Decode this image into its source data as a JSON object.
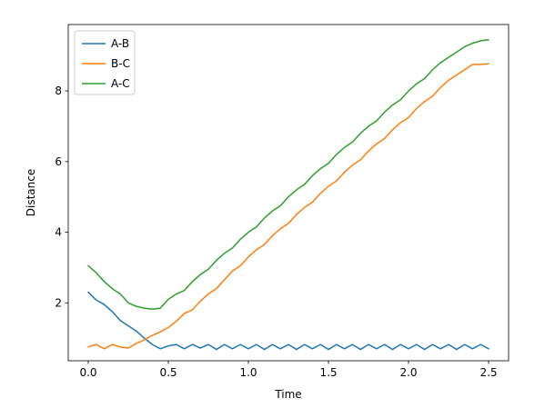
{
  "chart_data": {
    "type": "line",
    "title": "",
    "xlabel": "Time",
    "ylabel": "Distance",
    "xlim": [
      -0.125,
      2.625
    ],
    "ylim": [
      0.36,
      9.88
    ],
    "xticks": [
      0.0,
      0.5,
      1.0,
      1.5,
      2.0,
      2.5
    ],
    "xtick_labels": [
      "0.0",
      "0.5",
      "1.0",
      "1.5",
      "2.0",
      "2.5"
    ],
    "yticks": [
      2,
      4,
      6,
      8
    ],
    "ytick_labels": [
      "2",
      "4",
      "6",
      "8"
    ],
    "grid": false,
    "legend_position": "top-left",
    "series": [
      {
        "name": "A-B",
        "color": "#1f77b4",
        "x": [
          0.0,
          0.05,
          0.1,
          0.15,
          0.2,
          0.25,
          0.3,
          0.35,
          0.4,
          0.45,
          0.5,
          0.55,
          0.6,
          0.65,
          0.7,
          0.75,
          0.8,
          0.85,
          0.9,
          0.95,
          1.0,
          1.05,
          1.1,
          1.15,
          1.2,
          1.25,
          1.3,
          1.35,
          1.4,
          1.45,
          1.5,
          1.55,
          1.6,
          1.65,
          1.7,
          1.75,
          1.8,
          1.85,
          1.9,
          1.95,
          2.0,
          2.05,
          2.1,
          2.15,
          2.2,
          2.25,
          2.3,
          2.35,
          2.4,
          2.45,
          2.5
        ],
        "y": [
          2.3,
          2.08,
          1.95,
          1.75,
          1.5,
          1.35,
          1.2,
          1.0,
          0.82,
          0.7,
          0.78,
          0.82,
          0.7,
          0.82,
          0.72,
          0.82,
          0.68,
          0.82,
          0.7,
          0.82,
          0.7,
          0.82,
          0.68,
          0.82,
          0.7,
          0.82,
          0.68,
          0.82,
          0.7,
          0.82,
          0.68,
          0.82,
          0.7,
          0.82,
          0.68,
          0.82,
          0.7,
          0.82,
          0.68,
          0.82,
          0.7,
          0.82,
          0.68,
          0.82,
          0.7,
          0.82,
          0.68,
          0.82,
          0.7,
          0.82,
          0.7
        ]
      },
      {
        "name": "B-C",
        "color": "#ff7f0e",
        "x": [
          0.0,
          0.05,
          0.1,
          0.15,
          0.2,
          0.25,
          0.3,
          0.35,
          0.4,
          0.45,
          0.5,
          0.55,
          0.6,
          0.65,
          0.7,
          0.75,
          0.8,
          0.85,
          0.9,
          0.95,
          1.0,
          1.05,
          1.1,
          1.15,
          1.2,
          1.25,
          1.3,
          1.35,
          1.4,
          1.45,
          1.5,
          1.55,
          1.6,
          1.65,
          1.7,
          1.75,
          1.8,
          1.85,
          1.9,
          1.95,
          2.0,
          2.05,
          2.1,
          2.15,
          2.2,
          2.25,
          2.3,
          2.35,
          2.4,
          2.45,
          2.5
        ],
        "y": [
          0.75,
          0.82,
          0.7,
          0.82,
          0.75,
          0.72,
          0.85,
          0.95,
          1.08,
          1.18,
          1.3,
          1.48,
          1.7,
          1.8,
          2.05,
          2.25,
          2.4,
          2.65,
          2.9,
          3.05,
          3.3,
          3.5,
          3.65,
          3.9,
          4.1,
          4.25,
          4.5,
          4.7,
          4.85,
          5.1,
          5.3,
          5.45,
          5.7,
          5.9,
          6.05,
          6.3,
          6.5,
          6.65,
          6.9,
          7.1,
          7.25,
          7.5,
          7.7,
          7.85,
          8.1,
          8.3,
          8.45,
          8.6,
          8.75,
          8.75,
          8.77
        ]
      },
      {
        "name": "A-C",
        "color": "#2ca02c",
        "x": [
          0.0,
          0.05,
          0.1,
          0.15,
          0.2,
          0.25,
          0.3,
          0.35,
          0.4,
          0.45,
          0.5,
          0.55,
          0.6,
          0.65,
          0.7,
          0.75,
          0.8,
          0.85,
          0.9,
          0.95,
          1.0,
          1.05,
          1.1,
          1.15,
          1.2,
          1.25,
          1.3,
          1.35,
          1.4,
          1.45,
          1.5,
          1.55,
          1.6,
          1.65,
          1.7,
          1.75,
          1.8,
          1.85,
          1.9,
          1.95,
          2.0,
          2.05,
          2.1,
          2.15,
          2.2,
          2.25,
          2.3,
          2.35,
          2.4,
          2.45,
          2.5
        ],
        "y": [
          3.05,
          2.85,
          2.6,
          2.4,
          2.25,
          2.0,
          1.9,
          1.85,
          1.82,
          1.85,
          2.1,
          2.25,
          2.35,
          2.6,
          2.8,
          2.95,
          3.2,
          3.4,
          3.55,
          3.8,
          4.0,
          4.15,
          4.4,
          4.6,
          4.75,
          5.0,
          5.2,
          5.35,
          5.6,
          5.8,
          5.95,
          6.2,
          6.4,
          6.55,
          6.8,
          7.0,
          7.15,
          7.4,
          7.6,
          7.75,
          8.0,
          8.2,
          8.35,
          8.6,
          8.8,
          8.95,
          9.1,
          9.25,
          9.35,
          9.42,
          9.45
        ]
      }
    ]
  }
}
